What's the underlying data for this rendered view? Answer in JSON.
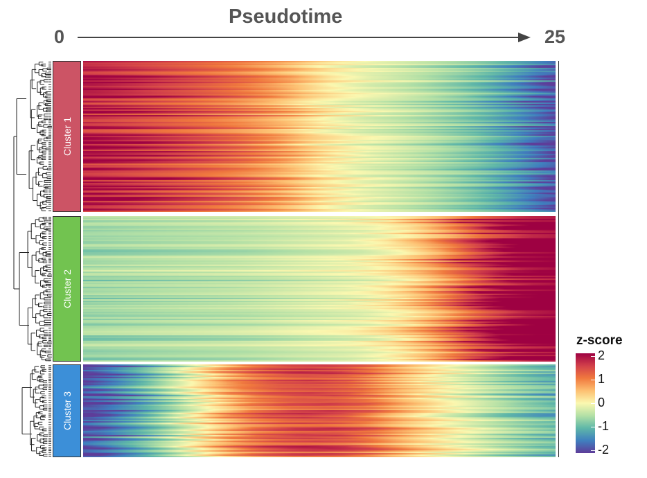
{
  "chart_data": {
    "type": "heatmap",
    "title": "Pseudotime",
    "x_axis": {
      "start_label": "0",
      "end_label": "25",
      "range": [
        0,
        25
      ]
    },
    "clusters": [
      {
        "name": "Cluster 1",
        "color": "#cc5465",
        "profile": [
          1.85,
          1.7,
          1.5,
          1.3,
          1.05,
          0.7,
          0.2,
          -0.1,
          -0.3,
          -0.55,
          -0.85,
          -1.3,
          -1.9
        ]
      },
      {
        "name": "Cluster 2",
        "color": "#72c350",
        "profile": [
          -0.6,
          -0.55,
          -0.5,
          -0.45,
          -0.4,
          -0.3,
          -0.2,
          -0.1,
          0.2,
          0.8,
          1.6,
          2.2,
          2.4
        ]
      },
      {
        "name": "Cluster 3",
        "color": "#3c8fd8",
        "profile": [
          -2.0,
          -1.4,
          -0.7,
          0.1,
          0.9,
          1.3,
          1.4,
          1.2,
          0.6,
          0.1,
          -0.3,
          -0.7,
          -1.0
        ]
      }
    ],
    "legend": {
      "title": "z-score",
      "ticks": [
        2,
        1,
        0,
        -1,
        -2
      ],
      "tick_labels": [
        "2",
        "1",
        "0",
        "-1",
        "-2"
      ],
      "range": [
        -2,
        2
      ],
      "colors": [
        "#5e3c99",
        "#3f7fbf",
        "#5fb7a8",
        "#b3e0a6",
        "#fbf8b0",
        "#fdc072",
        "#f0793e",
        "#d2404a",
        "#9e0142"
      ]
    }
  }
}
